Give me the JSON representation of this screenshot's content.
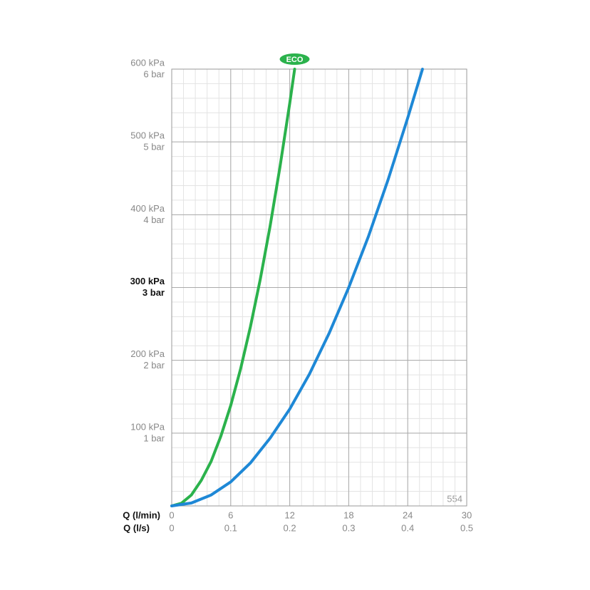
{
  "chart_data": {
    "type": "line",
    "annotation": "554",
    "xlabel": "Q (l/min)",
    "x2label": "Q (l/s)",
    "xlim": [
      0,
      30
    ],
    "xticks": [
      0,
      6,
      12,
      18,
      24,
      30
    ],
    "x2lim": [
      0,
      0.5
    ],
    "x2ticks": [
      0,
      0.1,
      0.2,
      0.3,
      0.4,
      0.5
    ],
    "ylim": [
      0,
      600
    ],
    "yticks": [
      {
        "value": 100,
        "label": "100 kPa"
      },
      {
        "value": 200,
        "label": "200 kPa"
      },
      {
        "value": 300,
        "label": "300 kPa"
      },
      {
        "value": 400,
        "label": "400 kPa"
      },
      {
        "value": 500,
        "label": "500 kPa"
      },
      {
        "value": 600,
        "label": "600 kPa"
      }
    ],
    "yticks_secondary": [
      {
        "value": 100,
        "label": "1 bar"
      },
      {
        "value": 200,
        "label": "2 bar"
      },
      {
        "value": 300,
        "label": "3 bar"
      },
      {
        "value": 400,
        "label": "4 bar"
      },
      {
        "value": 500,
        "label": "5 bar"
      },
      {
        "value": 600,
        "label": "6 bar"
      }
    ],
    "bold_ytick": 300,
    "grid": true,
    "minor_divisions": 5,
    "series": [
      {
        "name": "ECO",
        "color": "#2bb24c",
        "x": [
          0,
          1,
          2,
          3,
          4,
          5,
          6,
          7,
          8,
          9,
          10,
          11,
          12,
          12.5
        ],
        "values": [
          0,
          3.8,
          15,
          35,
          61,
          96,
          138,
          188,
          246,
          311,
          384,
          465,
          553,
          600
        ]
      },
      {
        "color": "#1e88d6",
        "x": [
          0,
          2,
          4,
          6,
          8,
          10,
          12,
          14,
          16,
          18,
          20,
          22,
          24,
          25.5
        ],
        "values": [
          0,
          4,
          15,
          33,
          59,
          93,
          133,
          181,
          237,
          300,
          370,
          448,
          533,
          600
        ]
      }
    ]
  }
}
